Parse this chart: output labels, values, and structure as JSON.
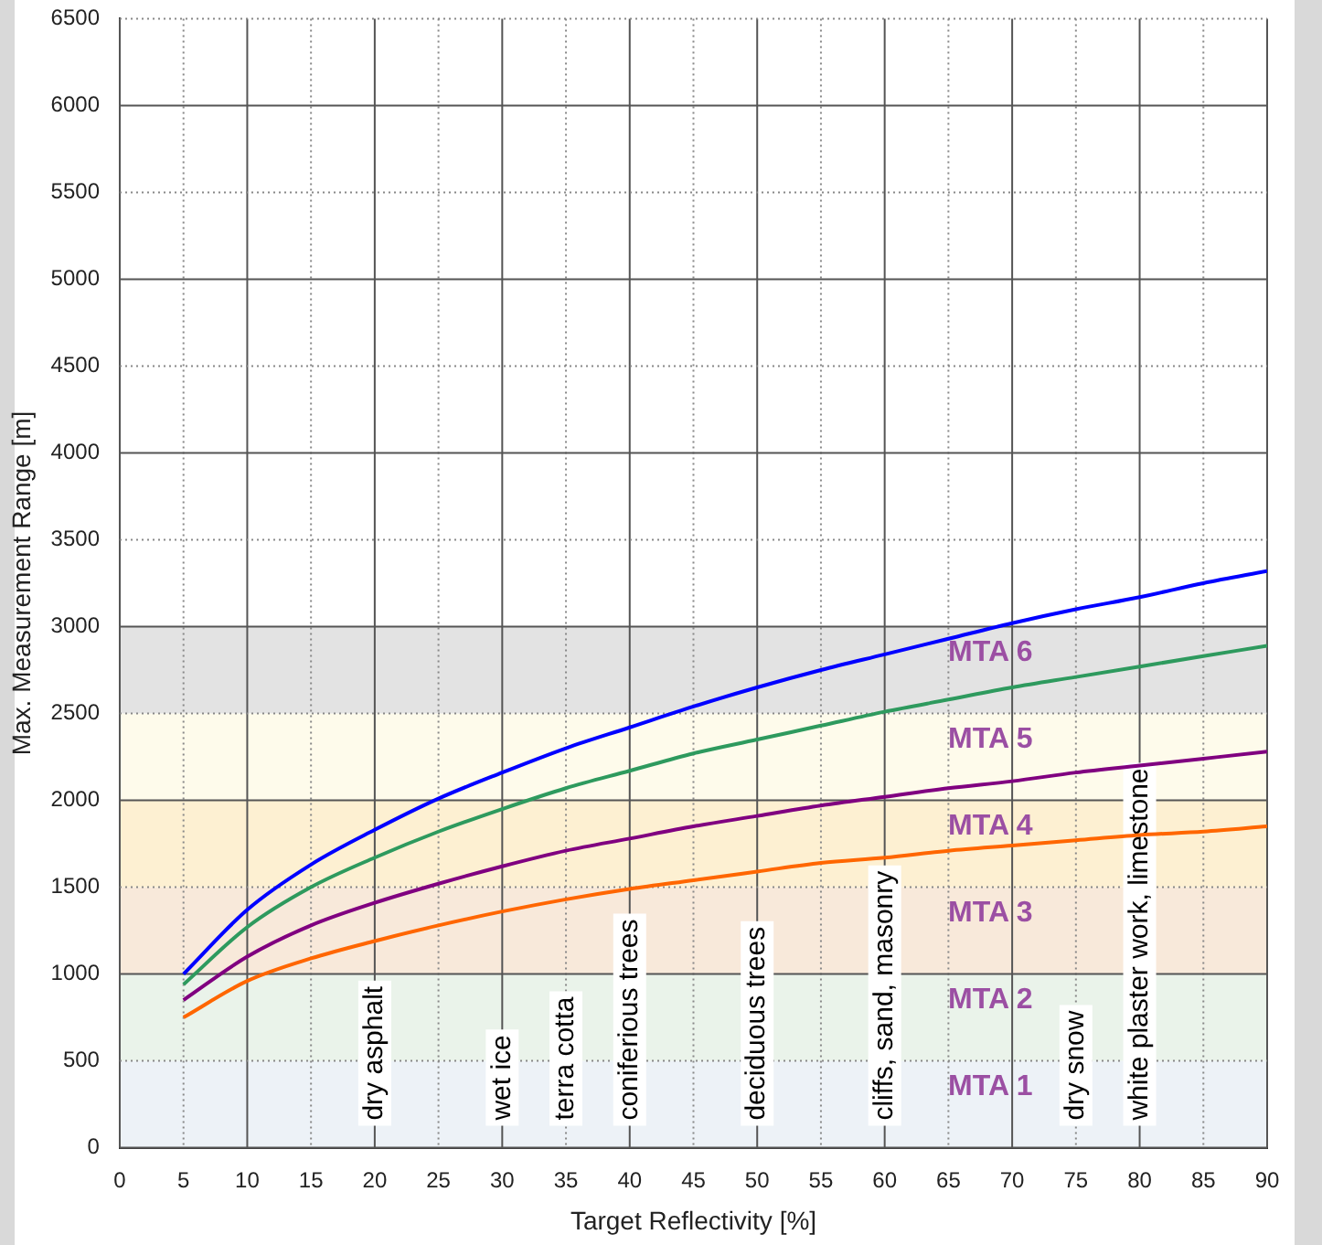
{
  "chart_data": {
    "type": "line",
    "xlabel": "Target Reflectivity [%]",
    "ylabel": "Max. Measurement Range [m]",
    "x": [
      5,
      10,
      15,
      20,
      25,
      30,
      35,
      40,
      45,
      50,
      55,
      60,
      65,
      70,
      75,
      80,
      85,
      90
    ],
    "series": [
      {
        "color": "#0000ff",
        "values": [
          1000,
          1370,
          1630,
          1830,
          2010,
          2160,
          2300,
          2420,
          2540,
          2650,
          2750,
          2840,
          2930,
          3020,
          3100,
          3170,
          3250,
          3320
        ]
      },
      {
        "color": "#2e9a5e",
        "values": [
          940,
          1270,
          1500,
          1670,
          1820,
          1950,
          2070,
          2170,
          2270,
          2350,
          2430,
          2510,
          2580,
          2650,
          2710,
          2770,
          2830,
          2890
        ]
      },
      {
        "color": "#800080",
        "values": [
          850,
          1100,
          1280,
          1410,
          1520,
          1620,
          1710,
          1780,
          1850,
          1910,
          1970,
          2020,
          2070,
          2110,
          2160,
          2200,
          2240,
          2280
        ]
      },
      {
        "color": "#ff6600",
        "values": [
          750,
          960,
          1090,
          1190,
          1280,
          1360,
          1430,
          1490,
          1540,
          1590,
          1640,
          1670,
          1710,
          1740,
          1770,
          1800,
          1820,
          1850
        ]
      }
    ],
    "xlim": [
      0,
      90
    ],
    "xticks": [
      0,
      5,
      10,
      15,
      20,
      25,
      30,
      35,
      40,
      45,
      50,
      55,
      60,
      65,
      70,
      75,
      80,
      85,
      90
    ],
    "ylim": [
      0,
      6500
    ],
    "yticks": [
      0,
      500,
      1000,
      1500,
      2000,
      2500,
      3000,
      3500,
      4000,
      4500,
      5000,
      5500,
      6000,
      6500
    ],
    "grid": true,
    "legend": false,
    "marker": "none",
    "line_style": "solid",
    "bands": [
      {
        "axis": "y",
        "from": 0,
        "to": 500,
        "label": "MTA 1",
        "color": "#edf2f7"
      },
      {
        "axis": "y",
        "from": 500,
        "to": 1000,
        "label": "MTA 2",
        "color": "#eaf3ea"
      },
      {
        "axis": "y",
        "from": 1000,
        "to": 1500,
        "label": "MTA 3",
        "color": "#f8e9da"
      },
      {
        "axis": "y",
        "from": 1500,
        "to": 2000,
        "label": "MTA 4",
        "color": "#fdf0d2"
      },
      {
        "axis": "y",
        "from": 2000,
        "to": 2500,
        "label": "MTA 5",
        "color": "#fefbeb"
      },
      {
        "axis": "y",
        "from": 2500,
        "to": 3000,
        "label": "MTA 6",
        "color": "#e3e3e3"
      }
    ],
    "annotations": [
      "dry asphalt",
      "wet ice",
      "terra cotta",
      "coniferious trees",
      "deciduous trees",
      "cliffs, sand, masonry",
      "dry snow",
      "white plaster work, limestone"
    ]
  }
}
